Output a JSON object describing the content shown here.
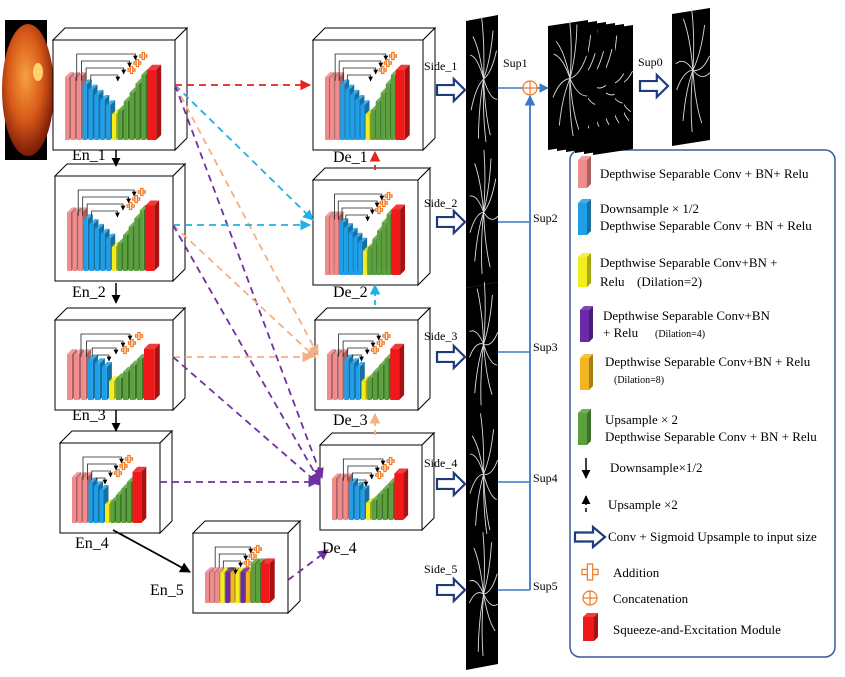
{
  "blocks": {
    "en1": "En_1",
    "en2": "En_2",
    "en3": "En_3",
    "en4": "En_4",
    "en5": "En_5",
    "de1": "De_1",
    "de2": "De_2",
    "de3": "De_3",
    "de4": "De_4"
  },
  "sides": {
    "s1": "Side_1",
    "s2": "Side_2",
    "s3": "Side_3",
    "s4": "Side_4",
    "s5": "Side_5"
  },
  "sups": {
    "sup0": "Sup0",
    "sup1": "Sup1",
    "sup2": "Sup2",
    "sup3": "Sup3",
    "sup4": "Sup4",
    "sup5": "Sup5"
  },
  "legend": {
    "dsconv": "Depthwise Separable Conv + BN+ Relu",
    "down_a": "Downsample × 1/2",
    "down_b": "Depthwise Separable Conv + BN + Relu",
    "dil2_a": "Depthwise Separable Conv+BN +",
    "dil2_b": "Relu",
    "dil2_c": "(Dilation=2)",
    "dil4_a": "Depthwise Separable Conv+BN",
    "dil4_b": "+ Relu",
    "dil4_c": "(Dilation=4)",
    "dil8_a": "Depthwise Separable Conv+BN + Relu",
    "dil8_b": "(Dilation=8)",
    "up_a": "Upsample × 2",
    "up_b": "Depthwise Separable Conv + BN + Relu",
    "arrow_down": "Downsample×1/2",
    "arrow_up": "Upsample ×2",
    "conv_sig": "Conv + Sigmoid Upsample to input size",
    "addition": "Addition",
    "concat": "Concatenation",
    "se": "Squeeze-and-Excitation Module"
  },
  "colors": {
    "pink": "#f08c8c",
    "blue": "#1e9fe8",
    "yellow": "#f2ee1c",
    "purple": "#6a2aa8",
    "orange": "#f2b620",
    "green": "#5aa03c",
    "red": "#f01818",
    "link_blue": "#3a78c8",
    "add_orange": "#f07820",
    "dash_red": "#e82020",
    "dash_cyan": "#20b0e8",
    "dash_peach": "#f4b084",
    "dash_purple": "#7030a0"
  }
}
